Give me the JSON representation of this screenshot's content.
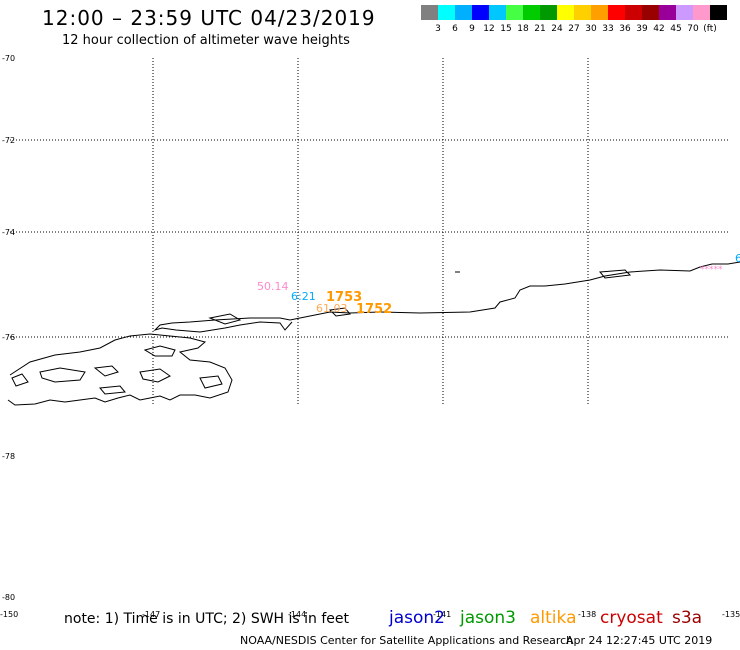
{
  "header": {
    "title": "12:00 – 23:59 UTC 04/23/2019",
    "subtitle": "12 hour collection of altimeter wave heights"
  },
  "legend": {
    "colors": [
      "#808080",
      "#00ffff",
      "#00b0ff",
      "#0000ff",
      "#00c8ff",
      "#44ff44",
      "#00cc00",
      "#009900",
      "#ffff00",
      "#ffd000",
      "#ffa000",
      "#ff0000",
      "#cc0000",
      "#990000",
      "#990099",
      "#cc99ff",
      "#ff99cc",
      "#000000"
    ],
    "labels": [
      "3",
      "6",
      "9",
      "12",
      "15",
      "18",
      "21",
      "24",
      "27",
      "30",
      "33",
      "36",
      "39",
      "42",
      "45",
      "70",
      "(ft)"
    ]
  },
  "axes": {
    "latitudes": [
      "-70",
      "-72",
      "-74",
      "-76",
      "-78",
      "-80"
    ],
    "longitudes": [
      "-150",
      "-147",
      "-144",
      "-141",
      "-138",
      "-135"
    ]
  },
  "track_labels": {
    "swh_left": "50.14",
    "time_left": "6:21",
    "time_main": "1753",
    "swh_mid": "61.03",
    "time_main2": "1752",
    "right_edge": "6",
    "right_marks": "*****"
  },
  "footer": {
    "note": "note: 1) Time is in UTC; 2) SWH is in feet",
    "satellites": [
      {
        "name": "jason2",
        "color": "#0000cc"
      },
      {
        "name": "jason3",
        "color": "#009900"
      },
      {
        "name": "altika",
        "color": "#ff9900"
      },
      {
        "name": "cryosat",
        "color": "#cc0000"
      },
      {
        "name": "s3a",
        "color": "#990000"
      }
    ],
    "credit": "NOAA/NESDIS Center for Satellite Applications and Research",
    "timestamp": "Apr 24 12:27:45 UTC 2019"
  }
}
